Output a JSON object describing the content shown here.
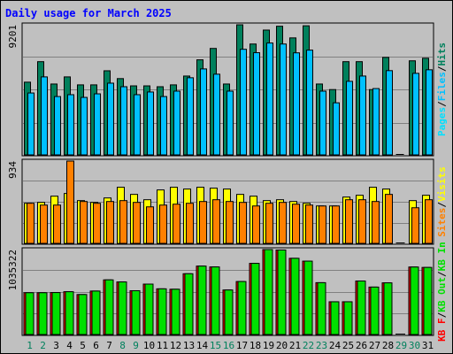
{
  "colors": {
    "hits": "#00805c",
    "files": "#00c0ff",
    "pages": "#00e0ff",
    "visits": "#ffff00",
    "sites": "#ff8000",
    "kbin": "#00e000",
    "kbout": "#ff0000",
    "title": "#0000ff",
    "weekend_label": "#00805c",
    "weekday_label": "#0000ff"
  },
  "chart_data": {
    "type": "bar",
    "title": "Daily usage for March 2025",
    "categories": [
      "1",
      "2",
      "3",
      "4",
      "5",
      "6",
      "7",
      "8",
      "9",
      "10",
      "11",
      "12",
      "13",
      "14",
      "15",
      "16",
      "17",
      "18",
      "19",
      "20",
      "21",
      "22",
      "23",
      "24",
      "25",
      "26",
      "27",
      "28",
      "29",
      "30",
      "31"
    ],
    "weekend_days": [
      "1",
      "2",
      "8",
      "9",
      "15",
      "16",
      "22",
      "23",
      "29",
      "30"
    ],
    "panels": [
      {
        "name": "hits-files-pages",
        "ymax_label": "9201",
        "ymax": 9201,
        "legend": [
          {
            "text": "Pages",
            "color": "#00e0ff"
          },
          {
            "text": "/",
            "color": "#000000"
          },
          {
            "text": "Files",
            "color": "#00c0ff"
          },
          {
            "text": "/",
            "color": "#000000"
          },
          {
            "text": "Hits",
            "color": "#00805c"
          }
        ],
        "series": [
          {
            "name": "Hits",
            "values": [
              5170,
              6610,
              5040,
              5540,
              4980,
              4980,
              5970,
              5420,
              4910,
              4910,
              4850,
              4980,
              5600,
              6740,
              7540,
              5040,
              9200,
              7850,
              8830,
              9100,
              8280,
              9130,
              5040,
              4650,
              6610,
              6610,
              4650,
              6910,
              0,
              6670,
              6850
            ]
          },
          {
            "name": "Files",
            "values": [
              4410,
              5540,
              4160,
              4290,
              4100,
              4350,
              5100,
              4850,
              4290,
              4480,
              4160,
              4540,
              5480,
              6100,
              5730,
              4540,
              7480,
              7240,
              7920,
              7850,
              7230,
              7420,
              4540,
              3720,
              5230,
              5600,
              4720,
              5980,
              0,
              5790,
              6040
            ]
          },
          {
            "name": "Pages",
            "values": [
              4410,
              5540,
              4160,
              4290,
              4100,
              4350,
              5100,
              4850,
              4290,
              4480,
              4160,
              4540,
              5480,
              6100,
              5730,
              4540,
              7480,
              7240,
              7920,
              7850,
              7230,
              7420,
              4540,
              3720,
              5230,
              5600,
              4720,
              5980,
              0,
              5790,
              6040
            ]
          }
        ]
      },
      {
        "name": "visits-sites",
        "ymax_label": "934",
        "ymax": 934,
        "legend": [
          {
            "text": "Sites",
            "color": "#ff8000"
          },
          {
            "text": "/",
            "color": "#000000"
          },
          {
            "text": "Visits",
            "color": "#ffff00"
          }
        ],
        "series": [
          {
            "name": "Visits",
            "values": [
              460,
              470,
              540,
              570,
              490,
              470,
              520,
              640,
              560,
              500,
              610,
              640,
              620,
              640,
              630,
              620,
              560,
              540,
              490,
              500,
              480,
              460,
              430,
              430,
              530,
              550,
              640,
              620,
              0,
              490,
              550
            ]
          },
          {
            "name": "Sites",
            "values": [
              460,
              440,
              440,
              934,
              480,
              460,
              480,
              490,
              470,
              420,
              440,
              450,
              460,
              480,
              500,
              480,
              470,
              430,
              460,
              470,
              450,
              440,
              430,
              430,
              500,
              500,
              480,
              560,
              0,
              410,
              500
            ]
          }
        ]
      },
      {
        "name": "kbin-kbout",
        "ymax_label": "1035322",
        "ymax": 1035322,
        "legend": [
          {
            "text": "KB F",
            "color": "#ff0000"
          },
          {
            "text": "/",
            "color": "#000000"
          },
          {
            "text": "KB Out",
            "color": "#00e000"
          },
          {
            "text": "/",
            "color": "#000000"
          },
          {
            "text": "KB In",
            "color": "#00e000"
          }
        ],
        "series": [
          {
            "name": "KB Out",
            "values": [
              515000,
              515000,
              517000,
              527000,
              493000,
              535000,
              670000,
              645000,
              539000,
              619000,
              562000,
              557000,
              744000,
              836000,
              826000,
              548000,
              650000,
              869000,
              1035322,
              1030000,
              930000,
              896000,
              636000,
              406000,
              406000,
              656000,
              583000,
              634000,
              0,
              825000,
              820000
            ]
          },
          {
            "name": "KB In",
            "values": [
              515000,
              515000,
              517000,
              527000,
              493000,
              535000,
              670000,
              645000,
              539000,
              619000,
              562000,
              557000,
              744000,
              836000,
              826000,
              548000,
              650000,
              869000,
              1035322,
              1030000,
              930000,
              896000,
              636000,
              406000,
              406000,
              656000,
              583000,
              634000,
              0,
              825000,
              820000
            ]
          }
        ]
      }
    ]
  }
}
